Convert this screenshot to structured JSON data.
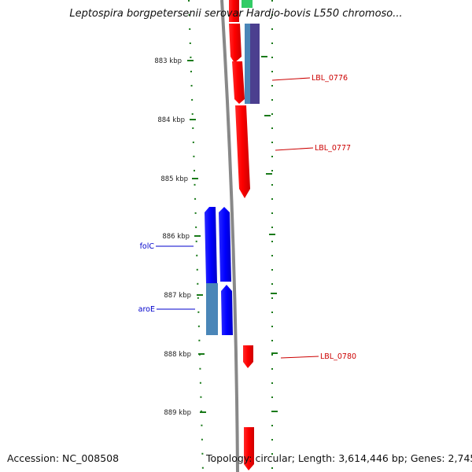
{
  "title": "Leptospira borgpetersenii serovar Hardjo-bovis L550 chromoso...",
  "footer": {
    "accession": "Accession: NC_008508",
    "topology": "Topology: circular; Length: 3,614,446 bp; Genes: 2,745"
  },
  "scale": {
    "unit": "kbp",
    "view_start_kbp": 882.4,
    "view_end_kbp": 889.8,
    "ticks": [
      {
        "kbp": 883,
        "label": "883 kbp"
      },
      {
        "kbp": 884,
        "label": "884 kbp"
      },
      {
        "kbp": 885,
        "label": "885 kbp"
      },
      {
        "kbp": 886,
        "label": "886 kbp"
      },
      {
        "kbp": 887,
        "label": "887 kbp"
      },
      {
        "kbp": 888,
        "label": "888 kbp"
      },
      {
        "kbp": 889,
        "label": "889 kbp"
      }
    ]
  },
  "colors": {
    "forward_cds": "#ff0000",
    "reverse_cds": "#0000ff",
    "feature_alt_1": "#4a86b8",
    "feature_alt_2": "#4b3f8f",
    "feature_alt_3": "#33cc66",
    "backbone": "#888888",
    "tick": "#1a7a1a",
    "forward_label": "#cc0000",
    "reverse_label": "#0000cc"
  },
  "labels": [
    {
      "text": "LBL_0776",
      "strand": "forward"
    },
    {
      "text": "LBL_0777",
      "strand": "forward"
    },
    {
      "text": "LBL_0780",
      "strand": "forward"
    },
    {
      "text": "folC",
      "strand": "reverse"
    },
    {
      "text": "aroE",
      "strand": "reverse"
    }
  ]
}
